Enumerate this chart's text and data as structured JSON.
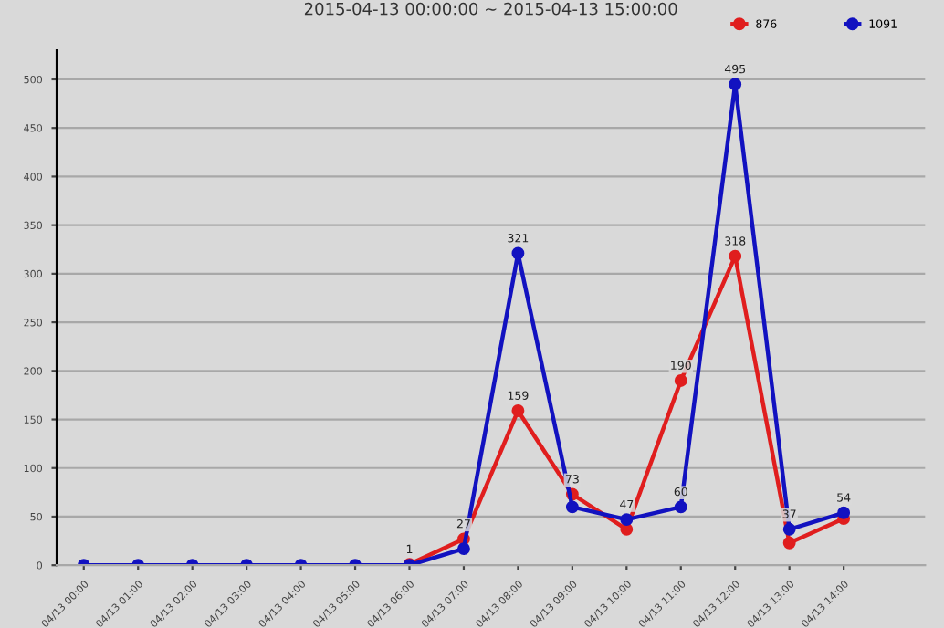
{
  "chart_data": {
    "type": "line",
    "title": "2015-04-13 00:00:00 ~ 2015-04-13 15:00:00",
    "categories": [
      "04/13 00:00",
      "04/13 01:00",
      "04/13 02:00",
      "04/13 03:00",
      "04/13 04:00",
      "04/13 05:00",
      "04/13 06:00",
      "04/13 07:00",
      "04/13 08:00",
      "04/13 09:00",
      "04/13 10:00",
      "04/13 11:00",
      "04/13 12:00",
      "04/13 13:00",
      "04/13 14:00"
    ],
    "series": [
      {
        "name": "876",
        "color": "#e01e1e",
        "values": [
          null,
          null,
          null,
          null,
          null,
          null,
          1,
          27,
          159,
          73,
          37,
          190,
          318,
          23,
          48
        ],
        "value_labels": [
          null,
          null,
          null,
          null,
          null,
          null,
          "1",
          "27",
          "159",
          "73",
          null,
          "190",
          "318",
          null,
          null
        ]
      },
      {
        "name": "1091",
        "color": "#1212c0",
        "values": [
          0,
          0,
          0,
          0,
          0,
          0,
          0,
          17,
          321,
          60,
          47,
          60,
          495,
          37,
          54
        ],
        "value_labels": [
          null,
          null,
          null,
          null,
          null,
          null,
          null,
          null,
          "321",
          null,
          "47",
          "60",
          "495",
          "37",
          "54"
        ]
      }
    ],
    "ylim": [
      0,
      530
    ],
    "yticks": [
      0,
      50,
      100,
      150,
      200,
      250,
      300,
      350,
      400,
      450,
      500
    ],
    "grid": "y",
    "legend": "top right",
    "marker": "circle",
    "line_style": "solid"
  }
}
